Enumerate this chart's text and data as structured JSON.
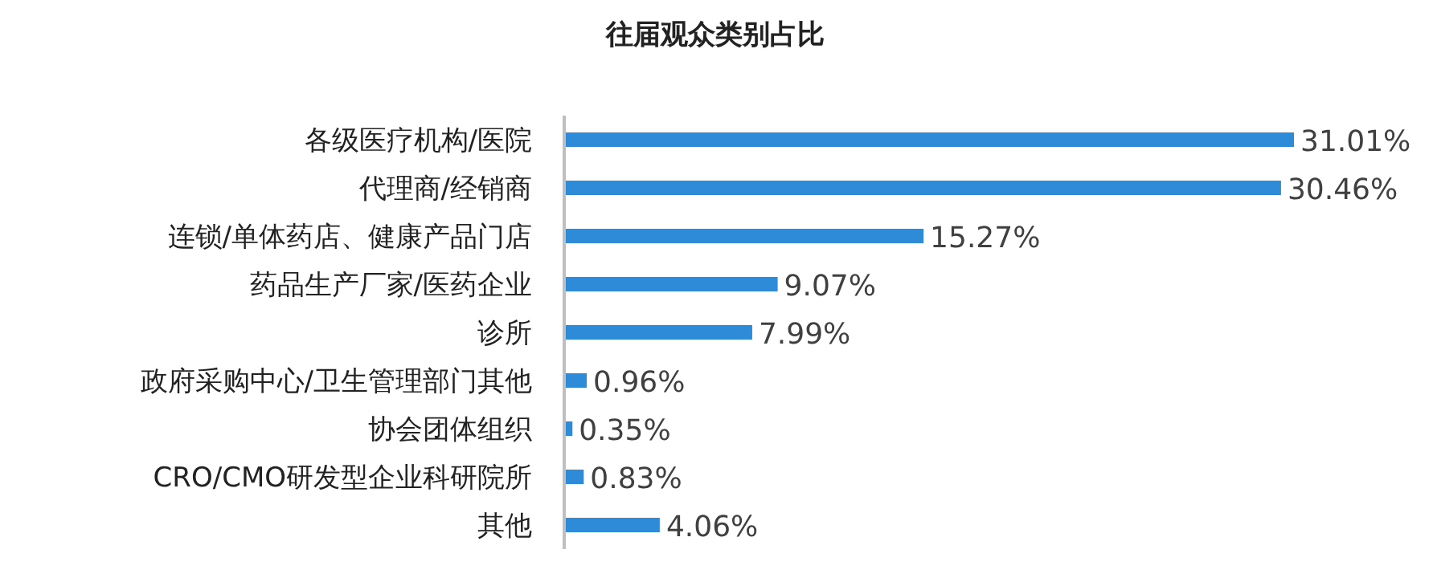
{
  "chart_data": {
    "type": "bar",
    "orientation": "horizontal",
    "title": "往届观众类别占比",
    "categories": [
      "各级医疗机构/医院",
      "代理商/经销商",
      "连锁/单体药店、健康产品门店",
      "药品生产厂家/医药企业",
      "诊所",
      "政府采购中心/卫生管理部门其他",
      "协会团体组织",
      "CRO/CMO研发型企业科研院所",
      "其他"
    ],
    "values": [
      31.01,
      30.46,
      15.27,
      9.07,
      7.99,
      0.96,
      0.35,
      0.83,
      4.06
    ],
    "value_labels": [
      "31.01%",
      "30.46%",
      "15.27%",
      "9.07%",
      "7.99%",
      "0.96%",
      "0.35%",
      "0.83%",
      "4.06%"
    ],
    "color": "#2e8bd8"
  }
}
